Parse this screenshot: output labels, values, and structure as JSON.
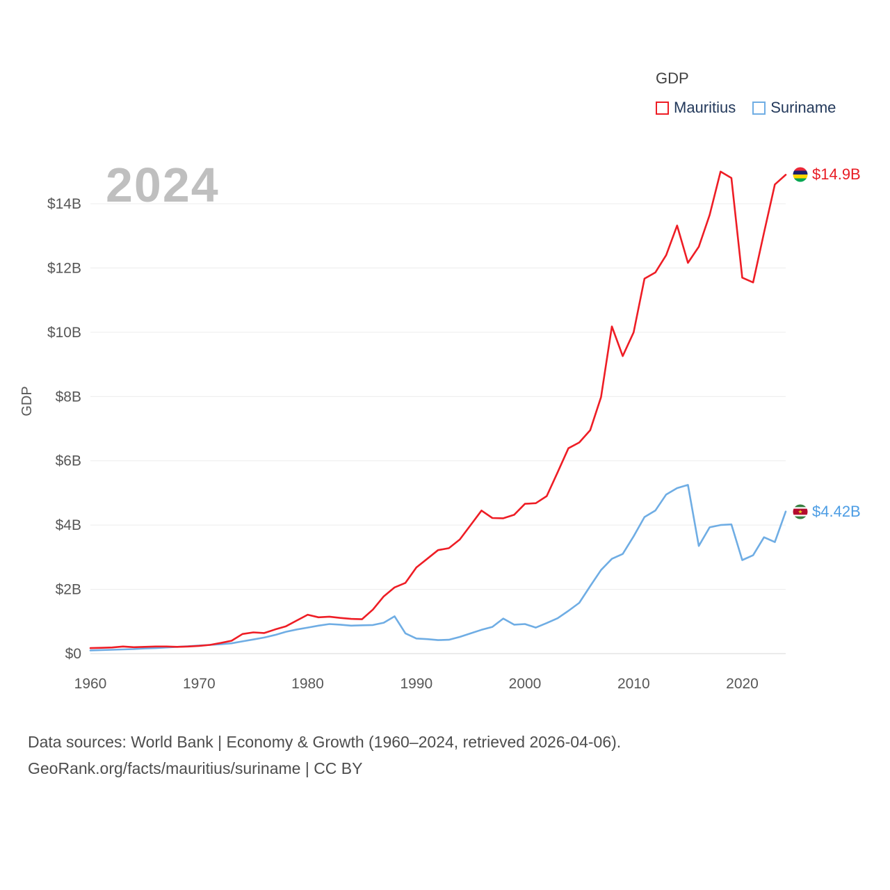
{
  "watermark": "2024",
  "legend": {
    "title": "GDP",
    "items": [
      {
        "label": "Mauritius",
        "color": "#ee1d25"
      },
      {
        "label": "Suriname",
        "color": "#6fade4"
      }
    ]
  },
  "end_labels": [
    {
      "series": "Mauritius",
      "text": "$14.9B",
      "color": "#e81c24",
      "flag_icon": "mauritius-flag"
    },
    {
      "series": "Suriname",
      "text": "$4.42B",
      "color": "#4d9de4",
      "flag_icon": "suriname-flag"
    }
  ],
  "footer": {
    "line1": "Data sources: World Bank | Economy & Growth (1960–2024, retrieved 2026-04-06).",
    "line2": "GeoRank.org/facts/mauritius/suriname | CC BY"
  },
  "chart_data": {
    "type": "line",
    "title": "GDP",
    "grid": true,
    "legend_position": "top-right",
    "x_range": [
      1960,
      2024
    ],
    "ylim": [
      0,
      15.4
    ],
    "y_axis": {
      "label": "GDP",
      "tick_values": [
        0,
        2,
        4,
        6,
        8,
        10,
        12,
        14
      ],
      "tick_labels": [
        "$0",
        "$2B",
        "$4B",
        "$6B",
        "$8B",
        "$10B",
        "$12B",
        "$14B"
      ]
    },
    "x_axis": {
      "label": "",
      "tick_values": [
        1960,
        1970,
        1980,
        1990,
        2000,
        2010,
        2020
      ],
      "tick_labels": [
        "1960",
        "1970",
        "1980",
        "1990",
        "2000",
        "2010",
        "2020"
      ]
    },
    "series": [
      {
        "name": "Mauritius",
        "color": "#ee1d25",
        "end_label": "$14.9B",
        "values": [
          0.17,
          0.18,
          0.19,
          0.22,
          0.2,
          0.21,
          0.22,
          0.22,
          0.21,
          0.22,
          0.24,
          0.27,
          0.33,
          0.4,
          0.61,
          0.66,
          0.64,
          0.75,
          0.85,
          1.03,
          1.21,
          1.13,
          1.15,
          1.11,
          1.08,
          1.07,
          1.37,
          1.78,
          2.06,
          2.2,
          2.68,
          2.95,
          3.22,
          3.28,
          3.55,
          4.0,
          4.45,
          4.22,
          4.21,
          4.32,
          4.66,
          4.68,
          4.9,
          5.64,
          6.39,
          6.57,
          6.95,
          7.98,
          10.18,
          9.26,
          10.0,
          11.67,
          11.86,
          12.4,
          13.32,
          12.16,
          12.66,
          13.65,
          15.0,
          14.8,
          11.7,
          11.55,
          13.1,
          14.6,
          14.9
        ]
      },
      {
        "name": "Suriname",
        "color": "#6fade4",
        "end_label": "$4.42B",
        "values": [
          0.1,
          0.11,
          0.12,
          0.13,
          0.14,
          0.16,
          0.17,
          0.19,
          0.21,
          0.23,
          0.25,
          0.27,
          0.29,
          0.32,
          0.38,
          0.44,
          0.5,
          0.58,
          0.68,
          0.75,
          0.81,
          0.87,
          0.92,
          0.9,
          0.87,
          0.88,
          0.89,
          0.96,
          1.16,
          0.63,
          0.47,
          0.45,
          0.42,
          0.43,
          0.52,
          0.63,
          0.74,
          0.83,
          1.09,
          0.9,
          0.92,
          0.81,
          0.95,
          1.1,
          1.33,
          1.58,
          2.1,
          2.6,
          2.95,
          3.1,
          3.65,
          4.25,
          4.45,
          4.95,
          5.15,
          5.25,
          3.35,
          3.93,
          4.0,
          4.02,
          2.91,
          3.06,
          3.62,
          3.47,
          4.42
        ]
      }
    ]
  }
}
